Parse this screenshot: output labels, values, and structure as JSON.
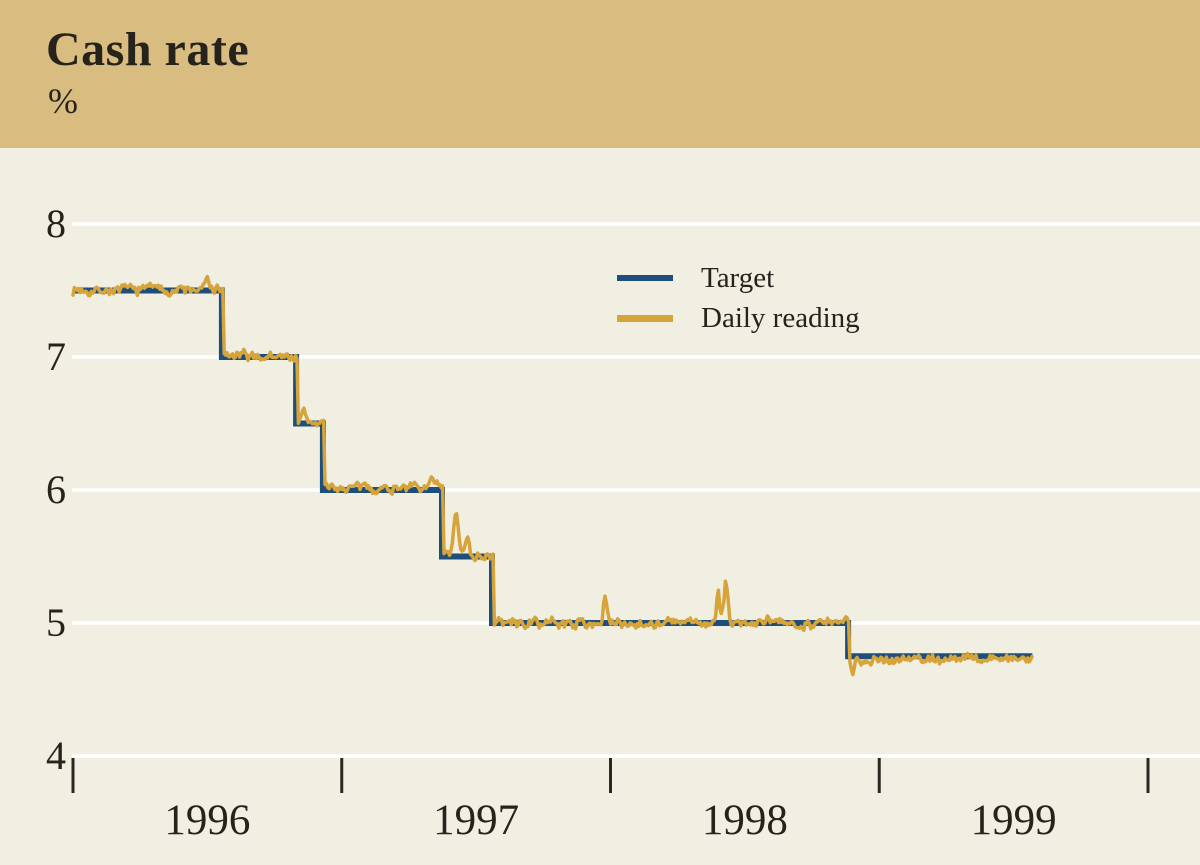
{
  "header": {
    "title": "Cash rate",
    "unit": "%",
    "background_color": "#d9bc80"
  },
  "canvas": {
    "background_color": "#f1eee2",
    "gridline_color": "#ffffff",
    "text_color": "#26221c",
    "tick_color": "#2b2823"
  },
  "legend": {
    "items": [
      {
        "label": "Target",
        "color": "#1e4e7c"
      },
      {
        "label": "Daily reading",
        "color": "#d5a43a"
      }
    ],
    "position": "inside upper middle"
  },
  "chart_data": {
    "type": "line",
    "title": "Cash rate",
    "ylabel": "%",
    "ylim": [
      4,
      8
    ],
    "yticks": [
      8,
      7,
      6,
      5,
      4
    ],
    "grid": "horizontal white gridlines at each y tick",
    "x_range_years": [
      1996.0,
      1999.57
    ],
    "year_boundary_ticks": [
      1996,
      1997,
      1998,
      1999,
      2000
    ],
    "year_labels": [
      "1996",
      "1997",
      "1998",
      "1999"
    ],
    "series": [
      {
        "name": "Target",
        "type": "step",
        "color": "#1e4e7c",
        "stroke_width": 6,
        "steps": [
          {
            "from": 1996.0,
            "to": 1996.554,
            "value": 7.5,
            "daily_bias": 0.005
          },
          {
            "from": 1996.554,
            "to": 1996.83,
            "value": 7.0,
            "daily_bias": 0.005
          },
          {
            "from": 1996.83,
            "to": 1996.93,
            "value": 6.5,
            "daily_bias": 0.01
          },
          {
            "from": 1996.93,
            "to": 1997.373,
            "value": 6.0,
            "daily_bias": 0.015
          },
          {
            "from": 1997.373,
            "to": 1997.559,
            "value": 5.5,
            "daily_bias": 0.01
          },
          {
            "from": 1997.559,
            "to": 1998.884,
            "value": 5.0,
            "daily_bias": 0.0
          },
          {
            "from": 1998.884,
            "to": 1999.57,
            "value": 4.75,
            "daily_bias": -0.02
          }
        ]
      },
      {
        "name": "Daily reading",
        "type": "noisy-follow",
        "color": "#d5a43a",
        "stroke_width": 3.5,
        "follows": "Target",
        "noise_amplitude": 0.028,
        "lag_years": 0.0045,
        "spikes": [
          {
            "x": 1996.29,
            "peak": 7.56,
            "width": 0.012
          },
          {
            "x": 1996.5,
            "peak": 7.57,
            "width": 0.012
          },
          {
            "x": 1996.86,
            "peak": 6.57,
            "width": 0.01
          },
          {
            "x": 1997.23,
            "peak": 6.06,
            "width": 0.01
          },
          {
            "x": 1997.33,
            "peak": 6.09,
            "width": 0.012
          },
          {
            "x": 1997.425,
            "peak": 5.8,
            "width": 0.012
          },
          {
            "x": 1997.468,
            "peak": 5.66,
            "width": 0.01
          },
          {
            "x": 1997.98,
            "peak": 5.2,
            "width": 0.008
          },
          {
            "x": 1998.4,
            "peak": 5.22,
            "width": 0.008
          },
          {
            "x": 1998.43,
            "peak": 5.31,
            "width": 0.01
          },
          {
            "x": 1998.9,
            "peak": 4.64,
            "width": 0.008
          },
          {
            "x": 1999.43,
            "peak": 4.8,
            "width": 0.008
          }
        ]
      }
    ]
  }
}
